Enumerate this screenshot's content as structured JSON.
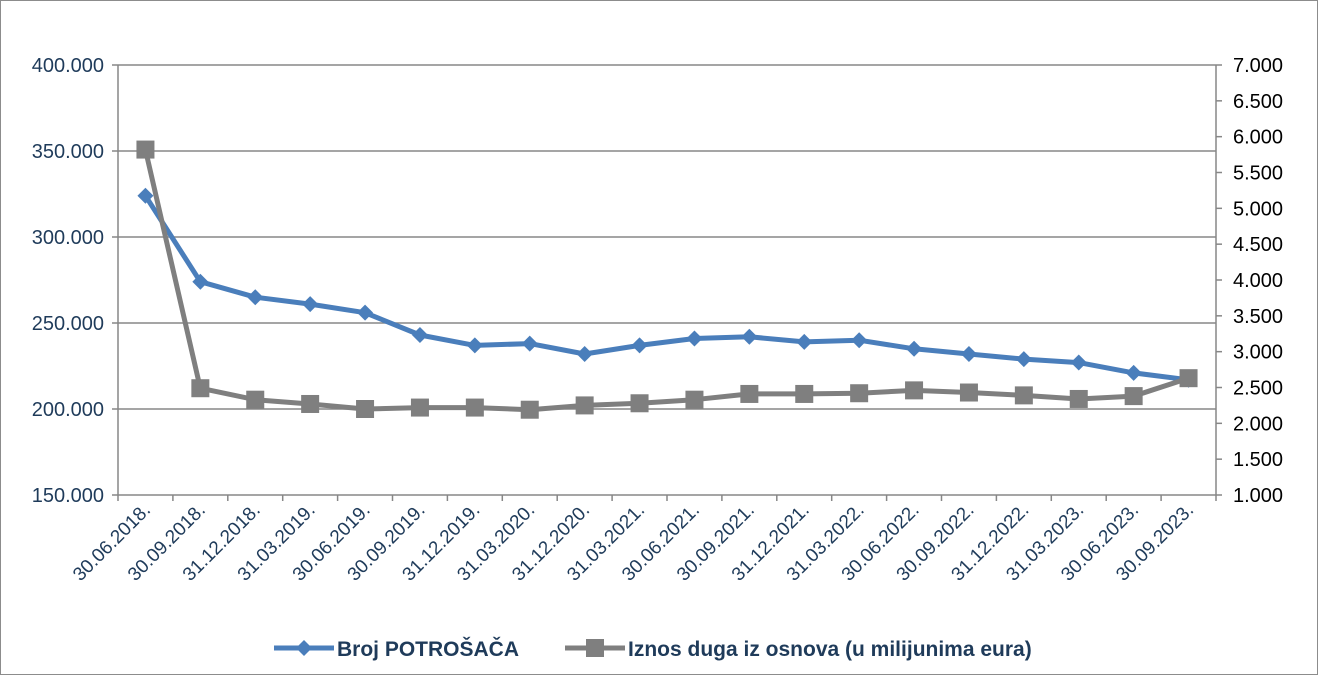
{
  "chart_data": {
    "type": "line",
    "categories": [
      "30.06.2018.",
      "30.09.2018.",
      "31.12.2018.",
      "31.03.2019.",
      "30.06.2019.",
      "30.09.2019.",
      "31.12.2019.",
      "31.03.2020.",
      "31.12.2020.",
      "31.03.2021.",
      "30.06.2021.",
      "30.09.2021.",
      "31.12.2021.",
      "31.03.2022.",
      "30.06.2022.",
      "30.09.2022.",
      "31.12.2022.",
      "31.03.2023.",
      "30.06.2023.",
      "30.09.2023."
    ],
    "series": [
      {
        "name": "Broj POTROŠAČA",
        "axis": "left",
        "color": "#4a7ebb",
        "marker": "diamond",
        "values": [
          324000,
          274000,
          265000,
          261000,
          256000,
          243000,
          237000,
          238000,
          232000,
          237000,
          241000,
          242000,
          239000,
          240000,
          235000,
          232000,
          229000,
          227000,
          221000,
          217000
        ]
      },
      {
        "name": "Iznos duga iz osnova (u milijunima eura)",
        "axis": "right",
        "color": "#7f7f7f",
        "marker": "square",
        "values": [
          5820,
          2490,
          2330,
          2270,
          2200,
          2220,
          2220,
          2190,
          2250,
          2280,
          2330,
          2410,
          2410,
          2420,
          2460,
          2430,
          2390,
          2340,
          2380,
          2630
        ]
      }
    ],
    "y_left": {
      "ylim": [
        150000,
        400000
      ],
      "ticks": [
        150000,
        200000,
        250000,
        300000,
        350000,
        400000
      ],
      "tick_labels": [
        "150.000",
        "200.000",
        "250.000",
        "300.000",
        "350.000",
        "400.000"
      ]
    },
    "y_right": {
      "ylim": [
        1000,
        7000
      ],
      "ticks": [
        1000,
        1500,
        2000,
        2500,
        3000,
        3500,
        4000,
        4500,
        5000,
        5500,
        6000,
        6500,
        7000
      ],
      "tick_labels": [
        "1.000",
        "1.500",
        "2.000",
        "2.500",
        "3.000",
        "3.500",
        "4.000",
        "4.500",
        "5.000",
        "5.500",
        "6.000",
        "6.500",
        "7.000"
      ]
    },
    "grid": "horizontal-major-left",
    "legend_position": "bottom"
  }
}
